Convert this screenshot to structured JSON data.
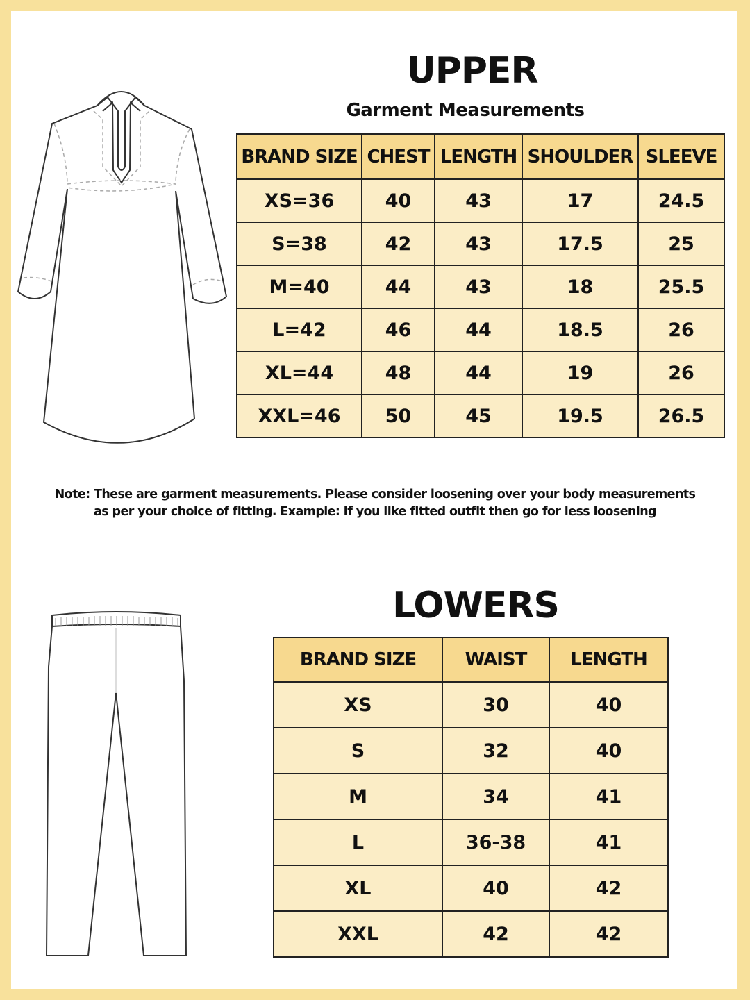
{
  "upper": {
    "title": "UPPER",
    "subtitle": "Garment Measurements",
    "headers": [
      "BRAND SIZE",
      "CHEST",
      "LENGTH",
      "SHOULDER",
      "SLEEVE"
    ],
    "rows": [
      [
        "XS=36",
        "40",
        "43",
        "17",
        "24.5"
      ],
      [
        "S=38",
        "42",
        "43",
        "17.5",
        "25"
      ],
      [
        "M=40",
        "44",
        "43",
        "18",
        "25.5"
      ],
      [
        "L=42",
        "46",
        "44",
        "18.5",
        "26"
      ],
      [
        "XL=44",
        "48",
        "44",
        "19",
        "26"
      ],
      [
        "XXL=46",
        "50",
        "45",
        "19.5",
        "26.5"
      ]
    ]
  },
  "note": {
    "line1": "Note: These are garment measurements. Please consider loosening over your body measurements",
    "line2": "as per your choice of fitting. Example: if you like fitted outfit then go for less loosening"
  },
  "lowers": {
    "title": "LOWERS",
    "headers": [
      "BRAND SIZE",
      "WAIST",
      "LENGTH"
    ],
    "rows": [
      [
        "XS",
        "30",
        "40"
      ],
      [
        "S",
        "32",
        "40"
      ],
      [
        "M",
        "34",
        "41"
      ],
      [
        "L",
        "36-38",
        "41"
      ],
      [
        "XL",
        "40",
        "42"
      ],
      [
        "XXL",
        "42",
        "42"
      ]
    ]
  },
  "colors": {
    "frame": "#f8e19c",
    "header": "#f7d98f",
    "cell": "#fbedc6"
  }
}
